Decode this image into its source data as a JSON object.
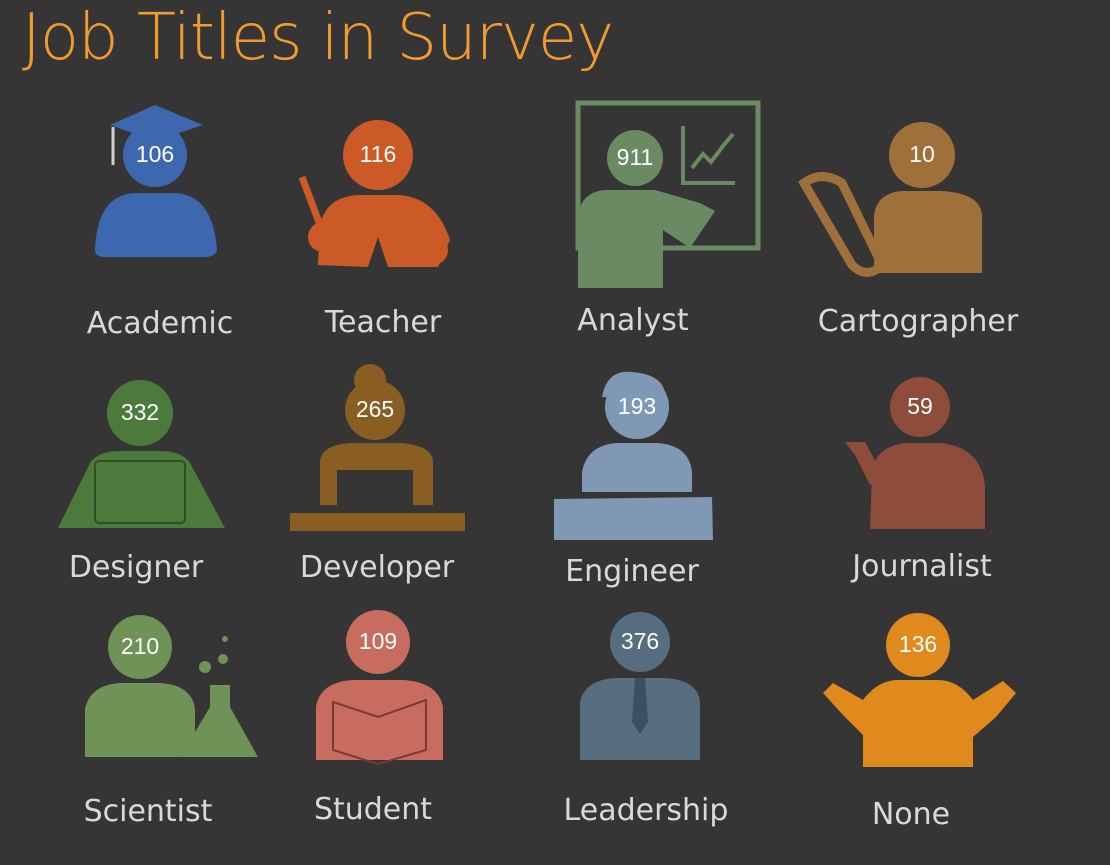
{
  "title": "Job Titles in Survey",
  "colors": {
    "background": "#353535",
    "title": "#f29a2e",
    "label": "#d9d9d9"
  },
  "chart_data": {
    "type": "pictogram",
    "title": "Job Titles in Survey",
    "categories": [
      "Academic",
      "Teacher",
      "Analyst",
      "Cartographer",
      "Designer",
      "Developer",
      "Engineer",
      "Journalist",
      "Scientist",
      "Student",
      "Leadership",
      "None"
    ],
    "values": [
      106,
      116,
      911,
      10,
      332,
      265,
      193,
      59,
      210,
      109,
      376,
      136
    ],
    "items": [
      {
        "label": "Academic",
        "value": 106,
        "icon": "graduate-icon",
        "color": "#3d68b0"
      },
      {
        "label": "Teacher",
        "value": 116,
        "icon": "teacher-icon",
        "color": "#cc5a26"
      },
      {
        "label": "Analyst",
        "value": 911,
        "icon": "analyst-icon",
        "color": "#6a8a62"
      },
      {
        "label": "Cartographer",
        "value": 10,
        "icon": "cartographer-icon",
        "color": "#a0703a"
      },
      {
        "label": "Designer",
        "value": 332,
        "icon": "designer-icon",
        "color": "#4b7a3c"
      },
      {
        "label": "Developer",
        "value": 265,
        "icon": "developer-icon",
        "color": "#8a5e22"
      },
      {
        "label": "Engineer",
        "value": 193,
        "icon": "engineer-icon",
        "color": "#7f99b5"
      },
      {
        "label": "Journalist",
        "value": 59,
        "icon": "journalist-icon",
        "color": "#8e4c3a"
      },
      {
        "label": "Scientist",
        "value": 210,
        "icon": "scientist-icon",
        "color": "#6f9257"
      },
      {
        "label": "Student",
        "value": 109,
        "icon": "student-icon",
        "color": "#c76c5e"
      },
      {
        "label": "Leadership",
        "value": 376,
        "icon": "leader-icon",
        "color": "#566e80"
      },
      {
        "label": "None",
        "value": 136,
        "icon": "shrug-icon",
        "color": "#e08a1e"
      }
    ]
  }
}
